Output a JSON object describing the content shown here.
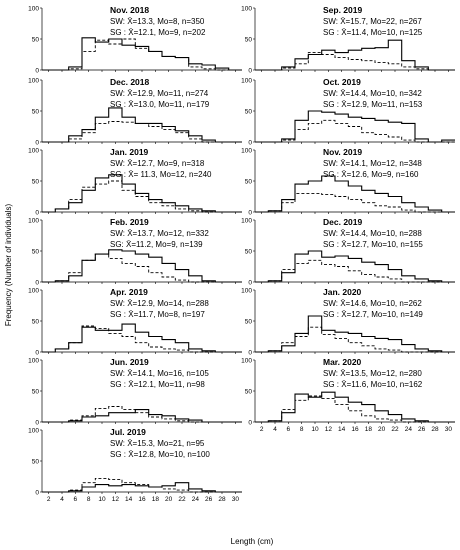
{
  "figure": {
    "ylabel": "Frequency (Number of individuals)",
    "xlabel": "Length (cm)",
    "legend": {
      "sw": "solid line",
      "sg": "dashed line"
    }
  },
  "chart_data": [
    {
      "type": "line",
      "step": true,
      "title": "Nov. 2018",
      "sw_stats": "SW: X̄=13.3, Mo=8, n=350",
      "sg_stats": "SG : X̄=12.1, Mo=9, n=202",
      "x": [
        2,
        4,
        6,
        8,
        10,
        12,
        14,
        16,
        18,
        20,
        22,
        24,
        26,
        28,
        30
      ],
      "series": [
        {
          "name": "SW",
          "values": [
            0,
            0,
            5,
            52,
            45,
            50,
            40,
            38,
            30,
            22,
            20,
            10,
            8,
            3,
            0
          ]
        },
        {
          "name": "SG",
          "values": [
            0,
            0,
            2,
            30,
            48,
            42,
            50,
            35,
            30,
            22,
            20,
            5,
            2,
            0,
            0
          ]
        }
      ],
      "ylim": [
        0,
        100
      ],
      "yticks": [
        0,
        50,
        100
      ],
      "xticks": []
    },
    {
      "type": "line",
      "step": true,
      "title": "Sep. 2019",
      "sw_stats": "SW: X̄=15.7, Mo=22, n=267",
      "sg_stats": "SG : X̄=11.4, Mo=10, n=125",
      "x": [
        2,
        4,
        6,
        8,
        10,
        12,
        14,
        16,
        18,
        20,
        22,
        24,
        26,
        28,
        30
      ],
      "series": [
        {
          "name": "SW",
          "values": [
            0,
            0,
            5,
            18,
            25,
            32,
            28,
            32,
            35,
            36,
            48,
            15,
            5,
            0,
            0
          ]
        },
        {
          "name": "SG",
          "values": [
            0,
            0,
            3,
            10,
            28,
            25,
            20,
            17,
            15,
            12,
            10,
            5,
            2,
            0,
            0
          ]
        }
      ],
      "ylim": [
        0,
        100
      ],
      "yticks": [
        0,
        50,
        100
      ],
      "xticks": []
    },
    {
      "type": "line",
      "step": true,
      "title": "Dec. 2018",
      "sw_stats": "SW: X̄=12.9, Mo=11, n=274",
      "sg_stats": "SG : X̄=13.0, Mo=11, n=179",
      "x": [
        2,
        4,
        6,
        8,
        10,
        12,
        14,
        16,
        18,
        20,
        22,
        24,
        26,
        28,
        30
      ],
      "series": [
        {
          "name": "SW",
          "values": [
            0,
            0,
            10,
            20,
            40,
            55,
            40,
            30,
            30,
            25,
            18,
            10,
            3,
            0,
            0
          ]
        },
        {
          "name": "SG",
          "values": [
            0,
            0,
            5,
            15,
            30,
            33,
            32,
            30,
            25,
            20,
            15,
            5,
            0,
            0,
            0
          ]
        }
      ],
      "ylim": [
        0,
        100
      ],
      "yticks": [
        0,
        50,
        100
      ],
      "xticks": []
    },
    {
      "type": "line",
      "step": true,
      "title": "Oct. 2019",
      "sw_stats": "SW: X̄=14.4, Mo=10, n=342",
      "sg_stats": "SG : X̄=12.9, Mo=11, n=153",
      "x": [
        2,
        4,
        6,
        8,
        10,
        12,
        14,
        16,
        18,
        20,
        22,
        24,
        26,
        28,
        30
      ],
      "series": [
        {
          "name": "SW",
          "values": [
            0,
            0,
            5,
            35,
            50,
            48,
            45,
            40,
            38,
            35,
            32,
            30,
            5,
            0,
            3
          ]
        },
        {
          "name": "SG",
          "values": [
            0,
            0,
            3,
            20,
            30,
            35,
            30,
            25,
            15,
            12,
            8,
            3,
            0,
            0,
            0
          ]
        }
      ],
      "ylim": [
        0,
        100
      ],
      "yticks": [
        0,
        50,
        100
      ],
      "xticks": []
    },
    {
      "type": "line",
      "step": true,
      "title": "Jan. 2019",
      "sw_stats": "SW: X̄=12.7, Mo=9, n=318",
      "sg_stats": "SG : X̄= 11.3, Mo=12, n=240",
      "x": [
        2,
        4,
        6,
        8,
        10,
        12,
        14,
        16,
        18,
        20,
        22,
        24,
        26,
        28,
        30
      ],
      "series": [
        {
          "name": "SW",
          "values": [
            0,
            5,
            15,
            35,
            55,
            60,
            45,
            30,
            20,
            15,
            10,
            5,
            2,
            0,
            0
          ]
        },
        {
          "name": "SG",
          "values": [
            0,
            5,
            20,
            40,
            45,
            50,
            35,
            25,
            15,
            10,
            5,
            2,
            0,
            0,
            0
          ]
        }
      ],
      "ylim": [
        0,
        100
      ],
      "yticks": [
        0,
        50,
        100
      ],
      "xticks": []
    },
    {
      "type": "line",
      "step": true,
      "title": "Nov. 2019",
      "sw_stats": "SW: X̄=14.1, Mo=12, n=348",
      "sg_stats": "SG : X̄=12.6, Mo=9, n=160",
      "x": [
        2,
        4,
        6,
        8,
        10,
        12,
        14,
        16,
        18,
        20,
        22,
        24,
        26,
        28,
        30
      ],
      "series": [
        {
          "name": "SW",
          "values": [
            0,
            2,
            20,
            45,
            50,
            58,
            50,
            42,
            35,
            30,
            25,
            15,
            8,
            3,
            0
          ]
        },
        {
          "name": "SG",
          "values": [
            0,
            2,
            15,
            30,
            30,
            28,
            25,
            20,
            15,
            10,
            8,
            3,
            0,
            0,
            0
          ]
        }
      ],
      "ylim": [
        0,
        100
      ],
      "yticks": [
        0,
        50,
        100
      ],
      "xticks": []
    },
    {
      "type": "line",
      "step": true,
      "title": "Feb. 2019",
      "sw_stats": "SW: X̄=13.7, Mo=12, n=332",
      "sg_stats": "SG: X̄=11.2, Mo=9, n=139",
      "x": [
        2,
        4,
        6,
        8,
        10,
        12,
        14,
        16,
        18,
        20,
        22,
        24,
        26,
        28,
        30
      ],
      "series": [
        {
          "name": "SW",
          "values": [
            0,
            2,
            10,
            35,
            45,
            52,
            50,
            45,
            40,
            30,
            20,
            10,
            2,
            0,
            0
          ]
        },
        {
          "name": "SG",
          "values": [
            0,
            2,
            15,
            35,
            45,
            38,
            30,
            25,
            15,
            8,
            3,
            0,
            0,
            0,
            0
          ]
        }
      ],
      "ylim": [
        0,
        100
      ],
      "yticks": [
        0,
        50,
        100
      ],
      "xticks": []
    },
    {
      "type": "line",
      "step": true,
      "title": "Dec. 2019",
      "sw_stats": "SW: X̄=14.4, Mo=10, n=288",
      "sg_stats": "SG : X̄=12.7, Mo=10, n=155",
      "x": [
        2,
        4,
        6,
        8,
        10,
        12,
        14,
        16,
        18,
        20,
        22,
        24,
        26,
        28,
        30
      ],
      "series": [
        {
          "name": "SW",
          "values": [
            0,
            2,
            15,
            45,
            50,
            40,
            42,
            38,
            32,
            28,
            20,
            10,
            5,
            2,
            0
          ]
        },
        {
          "name": "SG",
          "values": [
            0,
            2,
            20,
            30,
            35,
            28,
            25,
            18,
            12,
            8,
            5,
            0,
            0,
            0,
            0
          ]
        }
      ],
      "ylim": [
        0,
        100
      ],
      "yticks": [
        0,
        50,
        100
      ],
      "xticks": []
    },
    {
      "type": "line",
      "step": true,
      "title": "Apr. 2019",
      "sw_stats": "SW: X̄=12.9, Mo=14, n=288",
      "sg_stats": "SG : X̄=11.7, Mo=8, n=197",
      "x": [
        2,
        4,
        6,
        8,
        10,
        12,
        14,
        16,
        18,
        20,
        22,
        24,
        26,
        28,
        30
      ],
      "series": [
        {
          "name": "SW",
          "values": [
            0,
            5,
            15,
            40,
            35,
            35,
            45,
            32,
            25,
            20,
            15,
            5,
            2,
            0,
            0
          ]
        },
        {
          "name": "SG",
          "values": [
            0,
            5,
            15,
            42,
            38,
            30,
            25,
            15,
            8,
            5,
            3,
            0,
            0,
            0,
            0
          ]
        }
      ],
      "ylim": [
        0,
        100
      ],
      "yticks": [
        0,
        50,
        100
      ],
      "xticks": []
    },
    {
      "type": "line",
      "step": true,
      "title": "Jan. 2020",
      "sw_stats": "SW: X̄=14.6, Mo=10, n=262",
      "sg_stats": "SG : X̄=12.7, Mo=10, n=149",
      "x": [
        2,
        4,
        6,
        8,
        10,
        12,
        14,
        16,
        18,
        20,
        22,
        24,
        26,
        28,
        30
      ],
      "series": [
        {
          "name": "SW",
          "values": [
            0,
            2,
            10,
            30,
            58,
            35,
            32,
            30,
            25,
            22,
            20,
            12,
            5,
            2,
            0
          ]
        },
        {
          "name": "SG",
          "values": [
            0,
            2,
            15,
            25,
            40,
            28,
            22,
            15,
            10,
            5,
            3,
            0,
            0,
            0,
            0
          ]
        }
      ],
      "ylim": [
        0,
        100
      ],
      "yticks": [
        0,
        50,
        100
      ],
      "xticks": []
    },
    {
      "type": "line",
      "step": true,
      "title": "Jun. 2019",
      "sw_stats": "SW: X̄=14.1, Mo=16, n=105",
      "sg_stats": "SG : X̄=12.1, Mo=11, n=98",
      "x": [
        2,
        4,
        6,
        8,
        10,
        12,
        14,
        16,
        18,
        20,
        22,
        24,
        26,
        28,
        30
      ],
      "series": [
        {
          "name": "SW",
          "values": [
            0,
            0,
            2,
            8,
            10,
            15,
            15,
            20,
            12,
            10,
            5,
            3,
            0,
            0,
            0
          ]
        },
        {
          "name": "SG",
          "values": [
            0,
            0,
            3,
            10,
            22,
            25,
            20,
            15,
            8,
            5,
            2,
            0,
            0,
            0,
            0
          ]
        }
      ],
      "ylim": [
        0,
        100
      ],
      "yticks": [
        0,
        50,
        100
      ],
      "xticks": []
    },
    {
      "type": "line",
      "step": true,
      "title": "Mar. 2020",
      "sw_stats": "SW: X̄=13.5, Mo=12, n=280",
      "sg_stats": "SG : X̄=11.6, Mo=10, n=162",
      "x": [
        2,
        4,
        6,
        8,
        10,
        12,
        14,
        16,
        18,
        20,
        22,
        24,
        26,
        28,
        30
      ],
      "series": [
        {
          "name": "SW",
          "values": [
            0,
            2,
            15,
            45,
            40,
            48,
            40,
            32,
            28,
            18,
            12,
            5,
            2,
            0,
            0
          ]
        },
        {
          "name": "SG",
          "values": [
            0,
            2,
            20,
            35,
            42,
            38,
            28,
            18,
            10,
            5,
            3,
            0,
            0,
            0,
            0
          ]
        }
      ],
      "ylim": [
        0,
        100
      ],
      "yticks": [
        0,
        50,
        100
      ],
      "xticks": [
        "2",
        "4",
        "6",
        "8",
        "10",
        "12",
        "14",
        "16",
        "18",
        "20",
        "22",
        "24",
        "26",
        "28",
        "30"
      ]
    },
    {
      "type": "line",
      "step": true,
      "title": "Jul. 2019",
      "sw_stats": "SW: X̄=15.3, Mo=21, n=95",
      "sg_stats": "SG : X̄=12.8, Mo=10, n=100",
      "x": [
        2,
        4,
        6,
        8,
        10,
        12,
        14,
        16,
        18,
        20,
        22,
        24,
        26,
        28,
        30
      ],
      "series": [
        {
          "name": "SW",
          "values": [
            0,
            0,
            2,
            8,
            12,
            10,
            12,
            10,
            8,
            10,
            15,
            5,
            2,
            0,
            0
          ]
        },
        {
          "name": "SG",
          "values": [
            0,
            0,
            3,
            15,
            22,
            20,
            15,
            12,
            8,
            5,
            3,
            0,
            0,
            0,
            0
          ]
        }
      ],
      "ylim": [
        0,
        100
      ],
      "yticks": [
        0,
        50,
        100
      ],
      "xticks": [
        "2",
        "4",
        "6",
        "8",
        "10",
        "12",
        "14",
        "16",
        "18",
        "20",
        "22",
        "24",
        "26",
        "28",
        "30"
      ]
    }
  ]
}
